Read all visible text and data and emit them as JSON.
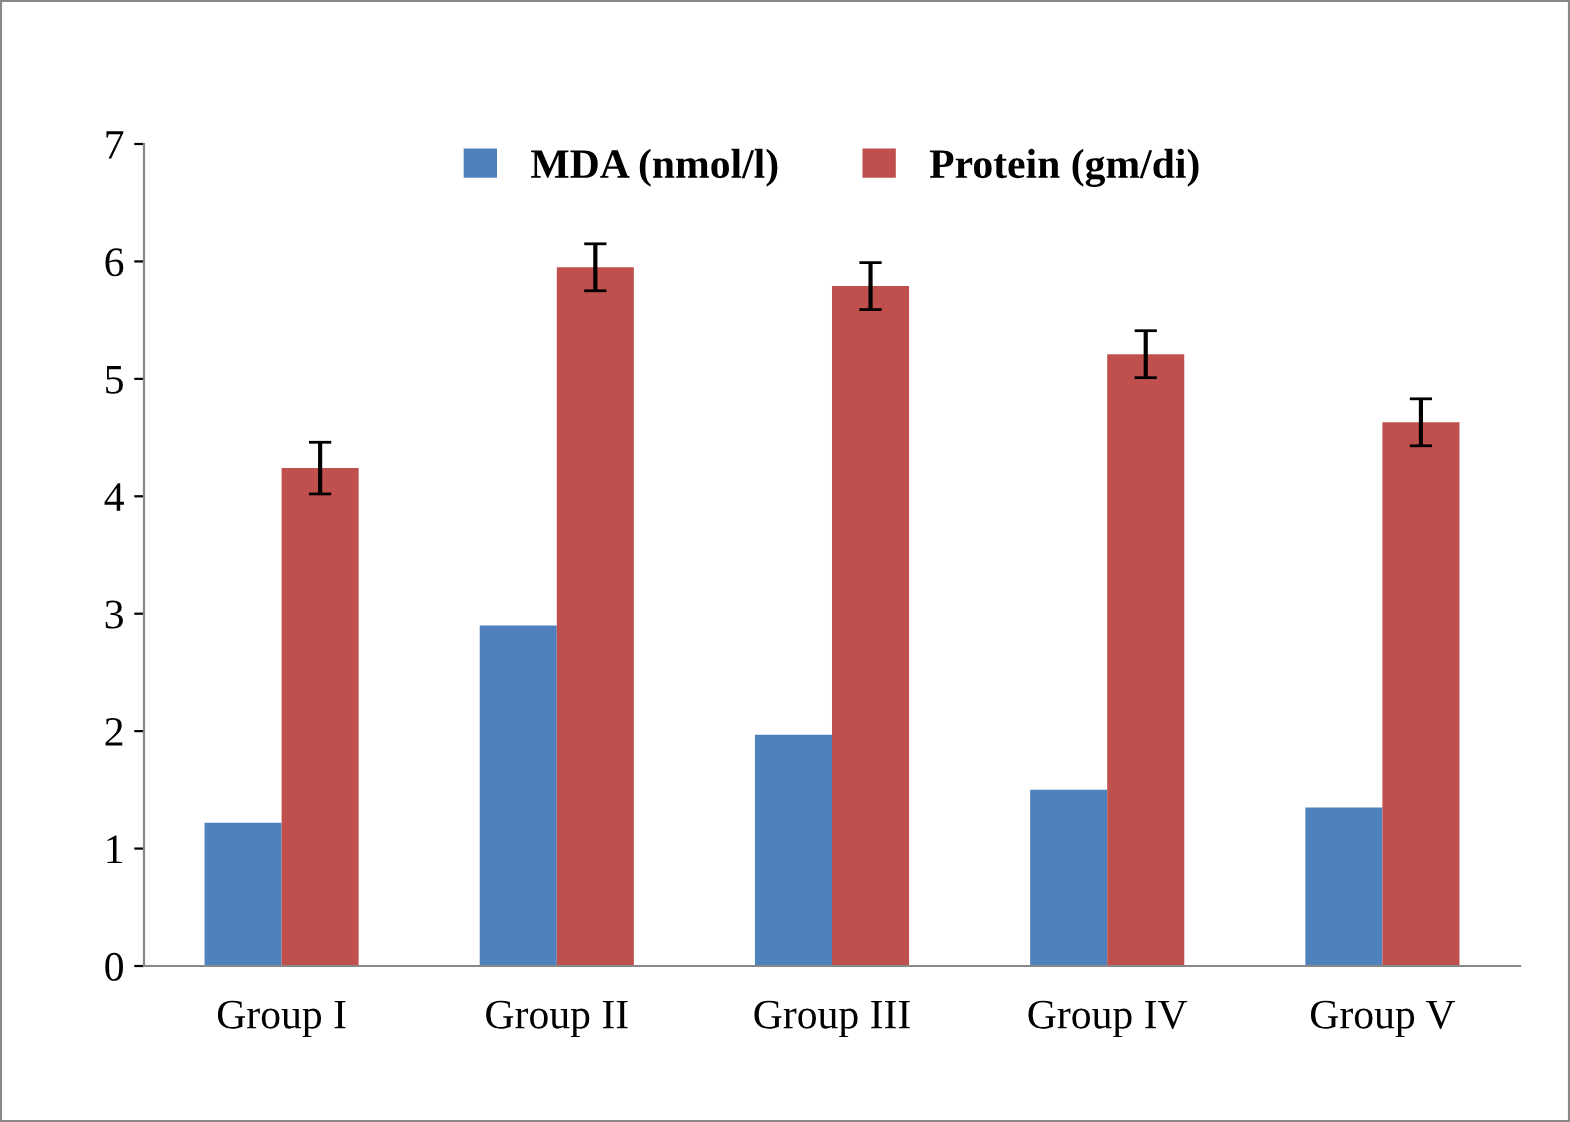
{
  "chart_data": {
    "type": "bar",
    "categories": [
      "Group I",
      "Group II",
      "Group III",
      "Group IV",
      "Group V"
    ],
    "series": [
      {
        "name": "MDA (nmol/l)",
        "color": "#4f81bd",
        "values": [
          1.22,
          2.9,
          1.97,
          1.5,
          1.35
        ]
      },
      {
        "name": "Protein (gm/di)",
        "color": "#c0504d",
        "values": [
          4.24,
          5.95,
          5.79,
          5.21,
          4.63
        ],
        "errors": [
          0.22,
          0.2,
          0.2,
          0.2,
          0.2
        ]
      }
    ],
    "ylim": [
      0,
      7
    ],
    "yticks": [
      0,
      1,
      2,
      3,
      4,
      5,
      6,
      7
    ],
    "grid": false,
    "legend": "top"
  }
}
